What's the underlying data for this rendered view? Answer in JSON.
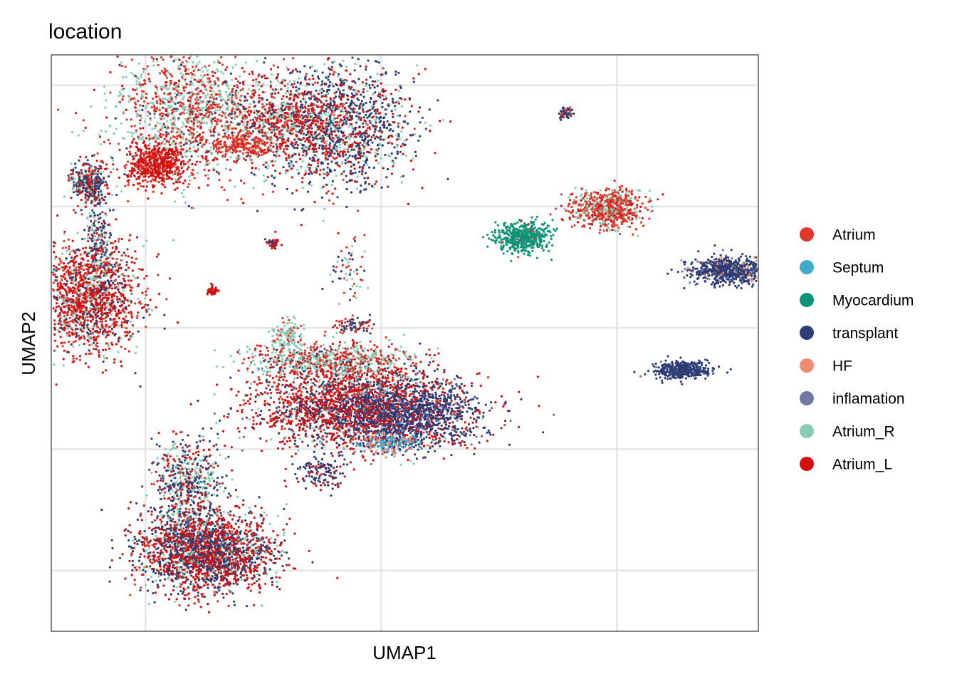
{
  "chart_data": {
    "type": "scatter",
    "title": "location",
    "xlabel": "UMAP1",
    "ylabel": "UMAP2",
    "xlim": [
      -5,
      10
    ],
    "ylim": [
      -11,
      8
    ],
    "grid": true,
    "legend_position": "right",
    "legend": [
      {
        "name": "Atrium",
        "color": "#E0362C"
      },
      {
        "name": "Septum",
        "color": "#3FAACC"
      },
      {
        "name": "Myocardium",
        "color": "#0E9478"
      },
      {
        "name": "transplant",
        "color": "#2D3D75"
      },
      {
        "name": "HF",
        "color": "#EE8B72"
      },
      {
        "name": "inflamation",
        "color": "#7078A6"
      },
      {
        "name": "Atrium_R",
        "color": "#87CDB6"
      },
      {
        "name": "Atrium_L",
        "color": "#D40F0F"
      }
    ],
    "clusters": [
      {
        "cx": -1.9,
        "cy": 6.0,
        "sx": 0.9,
        "sy": 1.1,
        "n": 1500,
        "mix": {
          "Atrium": 0.3,
          "Atrium_R": 0.45,
          "Atrium_L": 0.2,
          "transplant": 0.05
        }
      },
      {
        "cx": -2.8,
        "cy": 4.4,
        "sx": 0.3,
        "sy": 0.35,
        "n": 500,
        "mix": {
          "Atrium_L": 0.85,
          "Atrium": 0.15
        }
      },
      {
        "cx": 1.0,
        "cy": 5.7,
        "sx": 0.8,
        "sy": 1.0,
        "n": 1600,
        "mix": {
          "transplant": 0.45,
          "Atrium_L": 0.3,
          "Atrium_R": 0.2,
          "Atrium": 0.05
        }
      },
      {
        "cx": 0.0,
        "cy": 5.9,
        "sx": 0.5,
        "sy": 0.35,
        "n": 300,
        "mix": {
          "Atrium_L": 0.4,
          "Atrium": 0.3,
          "Atrium_R": 0.2,
          "transplant": 0.1
        }
      },
      {
        "cx": -0.9,
        "cy": 5.0,
        "sx": 0.35,
        "sy": 0.2,
        "n": 200,
        "mix": {
          "Atrium": 0.9,
          "Atrium_L": 0.1
        }
      },
      {
        "cx": -4.2,
        "cy": 3.8,
        "sx": 0.2,
        "sy": 0.35,
        "n": 350,
        "mix": {
          "transplant": 0.45,
          "Atrium_L": 0.25,
          "Atrium": 0.15,
          "Atrium_R": 0.15
        }
      },
      {
        "cx": -4.2,
        "cy": 0.0,
        "sx": 0.55,
        "sy": 0.9,
        "n": 1500,
        "mix": {
          "Atrium_L": 0.45,
          "Atrium": 0.25,
          "Atrium_R": 0.15,
          "transplant": 0.15
        }
      },
      {
        "cx": -4.0,
        "cy": 1.8,
        "sx": 0.15,
        "sy": 0.8,
        "n": 200,
        "mix": {
          "transplant": 0.5,
          "Atrium_R": 0.3,
          "Atrium_L": 0.2
        }
      },
      {
        "cx": 1.5,
        "cy": -3.6,
        "sx": 1.1,
        "sy": 0.7,
        "n": 2500,
        "mix": {
          "Atrium_L": 0.5,
          "transplant": 0.3,
          "Atrium": 0.1,
          "Atrium_R": 0.05,
          "inflamation": 0.05
        }
      },
      {
        "cx": 2.7,
        "cy": -3.9,
        "sx": 0.65,
        "sy": 0.5,
        "n": 900,
        "mix": {
          "transplant": 0.75,
          "inflamation": 0.15,
          "Atrium_L": 0.1
        }
      },
      {
        "cx": 0.9,
        "cy": -2.1,
        "sx": 0.8,
        "sy": 0.3,
        "n": 700,
        "mix": {
          "Atrium_R": 0.45,
          "Atrium": 0.35,
          "Atrium_L": 0.15,
          "transplant": 0.05
        }
      },
      {
        "cx": 2.2,
        "cy": -4.8,
        "sx": 0.35,
        "sy": 0.15,
        "n": 200,
        "mix": {
          "Septum": 0.6,
          "HF": 0.3,
          "transplant": 0.1
        }
      },
      {
        "cx": -1.7,
        "cy": -8.4,
        "sx": 0.7,
        "sy": 0.65,
        "n": 2200,
        "mix": {
          "Atrium_L": 0.45,
          "transplant": 0.4,
          "Atrium_R": 0.1,
          "Atrium": 0.05
        }
      },
      {
        "cx": -2.1,
        "cy": -6.2,
        "sx": 0.35,
        "sy": 0.8,
        "n": 600,
        "mix": {
          "transplant": 0.4,
          "Atrium_R": 0.3,
          "Atrium_L": 0.2,
          "Atrium": 0.1
        }
      },
      {
        "cx": 5.0,
        "cy": 2.0,
        "sx": 0.28,
        "sy": 0.25,
        "n": 500,
        "mix": {
          "Myocardium": 0.95,
          "Atrium": 0.05
        }
      },
      {
        "cx": 6.8,
        "cy": 2.9,
        "sx": 0.4,
        "sy": 0.3,
        "n": 700,
        "mix": {
          "Atrium": 0.55,
          "Atrium_R": 0.3,
          "Atrium_L": 0.15
        }
      },
      {
        "cx": 9.4,
        "cy": 0.9,
        "sx": 0.45,
        "sy": 0.22,
        "n": 700,
        "mix": {
          "transplant": 0.8,
          "inflamation": 0.1,
          "HF": 0.1
        }
      },
      {
        "cx": 8.4,
        "cy": -2.4,
        "sx": 0.28,
        "sy": 0.14,
        "n": 450,
        "mix": {
          "transplant": 0.95,
          "inflamation": 0.05
        }
      },
      {
        "cx": 5.9,
        "cy": 6.1,
        "sx": 0.09,
        "sy": 0.09,
        "n": 50,
        "mix": {
          "transplant": 0.7,
          "Atrium": 0.3
        }
      },
      {
        "cx": -0.3,
        "cy": 1.8,
        "sx": 0.06,
        "sy": 0.1,
        "n": 40,
        "mix": {
          "Atrium_L": 0.7,
          "transplant": 0.3
        }
      },
      {
        "cx": -1.6,
        "cy": 0.2,
        "sx": 0.07,
        "sy": 0.07,
        "n": 40,
        "mix": {
          "Atrium_L": 1.0
        }
      },
      {
        "cx": 1.3,
        "cy": 1.0,
        "sx": 0.2,
        "sy": 0.5,
        "n": 60,
        "mix": {
          "Atrium": 0.4,
          "Atrium_R": 0.3,
          "transplant": 0.3
        }
      },
      {
        "cx": 1.4,
        "cy": -0.9,
        "sx": 0.2,
        "sy": 0.15,
        "n": 80,
        "mix": {
          "transplant": 0.6,
          "Atrium": 0.4
        }
      },
      {
        "cx": 0.0,
        "cy": -1.3,
        "sx": 0.15,
        "sy": 0.3,
        "n": 120,
        "mix": {
          "Atrium_R": 0.8,
          "Atrium": 0.2
        }
      },
      {
        "cx": 0.7,
        "cy": -5.8,
        "sx": 0.25,
        "sy": 0.25,
        "n": 120,
        "mix": {
          "transplant": 0.7,
          "Atrium_L": 0.3
        }
      }
    ]
  }
}
